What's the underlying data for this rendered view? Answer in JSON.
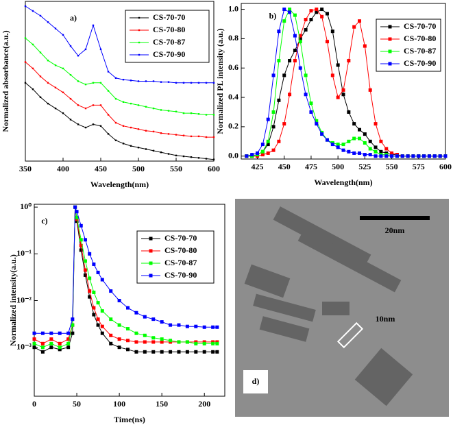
{
  "chart_data": [
    {
      "type": "line",
      "panel_label": "a)",
      "xlabel": "Wavelength(nm)",
      "ylabel": "Normalized absorbance(a.u.)",
      "marker": "dot",
      "x": [
        350,
        360,
        370,
        380,
        390,
        400,
        410,
        420,
        430,
        440,
        450,
        460,
        470,
        480,
        490,
        500,
        510,
        520,
        530,
        540,
        550,
        560,
        570,
        580,
        590,
        600
      ],
      "xlim": [
        350,
        600
      ],
      "xticks": [
        350,
        400,
        450,
        500,
        550,
        600
      ],
      "ylim": [
        0,
        1
      ],
      "series": [
        {
          "name": "CS-70-70",
          "color": "#000000",
          "values": [
            0.49,
            0.45,
            0.4,
            0.36,
            0.33,
            0.3,
            0.26,
            0.23,
            0.21,
            0.23,
            0.22,
            0.17,
            0.13,
            0.11,
            0.095,
            0.085,
            0.075,
            0.065,
            0.055,
            0.045,
            0.035,
            0.03,
            0.025,
            0.02,
            0.015,
            0.01
          ]
        },
        {
          "name": "CS-70-80",
          "color": "#ff0000",
          "values": [
            0.62,
            0.58,
            0.53,
            0.49,
            0.46,
            0.43,
            0.39,
            0.35,
            0.33,
            0.35,
            0.35,
            0.29,
            0.24,
            0.22,
            0.21,
            0.2,
            0.19,
            0.185,
            0.175,
            0.17,
            0.165,
            0.16,
            0.155,
            0.155,
            0.15,
            0.15
          ]
        },
        {
          "name": "CS-70-87",
          "color": "#00ff00",
          "values": [
            0.77,
            0.73,
            0.68,
            0.63,
            0.6,
            0.58,
            0.54,
            0.5,
            0.48,
            0.49,
            0.49,
            0.44,
            0.39,
            0.37,
            0.36,
            0.35,
            0.34,
            0.33,
            0.32,
            0.315,
            0.31,
            0.3,
            0.3,
            0.295,
            0.29,
            0.29
          ]
        },
        {
          "name": "CS-70-90",
          "color": "#0000ff",
          "values": [
            0.97,
            0.94,
            0.91,
            0.87,
            0.83,
            0.79,
            0.72,
            0.66,
            0.7,
            0.85,
            0.7,
            0.56,
            0.52,
            0.51,
            0.505,
            0.5,
            0.5,
            0.5,
            0.495,
            0.495,
            0.49,
            0.49,
            0.49,
            0.49,
            0.49,
            0.49
          ]
        }
      ]
    },
    {
      "type": "line",
      "panel_label": "b)",
      "xlabel": "Wavelength(nm)",
      "ylabel": "Normalized PL intensity (a.u.)",
      "marker": "square",
      "x": [
        415,
        420,
        425,
        430,
        435,
        440,
        445,
        450,
        455,
        460,
        465,
        470,
        475,
        480,
        485,
        490,
        495,
        500,
        505,
        510,
        515,
        520,
        525,
        530,
        535,
        540,
        545,
        550,
        555,
        560,
        565,
        570,
        575,
        580,
        585,
        590,
        595,
        600
      ],
      "xlim": [
        410,
        600
      ],
      "xticks": [
        425,
        450,
        475,
        500,
        525,
        550,
        575,
        600
      ],
      "ylim": [
        -0.02,
        1.04
      ],
      "yticks": [
        {
          "value": 0,
          "label": "0.0"
        },
        0.2,
        0.4,
        0.6,
        0.8,
        {
          "value": 1,
          "label": "1.0"
        }
      ],
      "series": [
        {
          "name": "CS-70-70",
          "color": "#000000",
          "values": [
            0,
            0,
            0.01,
            0.03,
            0.08,
            0.2,
            0.38,
            0.55,
            0.65,
            0.72,
            0.8,
            0.86,
            0.93,
            0.98,
            1.0,
            0.97,
            0.85,
            0.62,
            0.42,
            0.3,
            0.22,
            0.18,
            0.15,
            0.1,
            0.06,
            0.03,
            0.02,
            0.01,
            0.01,
            0,
            0,
            0,
            0,
            0,
            0,
            0,
            0,
            0
          ]
        },
        {
          "name": "CS-70-80",
          "color": "#ff0000",
          "values": [
            0,
            0,
            0,
            0.01,
            0.02,
            0.04,
            0.1,
            0.22,
            0.42,
            0.65,
            0.82,
            0.93,
            0.99,
            1.0,
            0.95,
            0.78,
            0.55,
            0.4,
            0.45,
            0.65,
            0.88,
            0.92,
            0.75,
            0.45,
            0.22,
            0.1,
            0.05,
            0.02,
            0.01,
            0,
            0,
            0,
            0,
            0,
            0,
            0,
            0,
            0
          ]
        },
        {
          "name": "CS-70-87",
          "color": "#00ff00",
          "values": [
            0,
            0,
            0.01,
            0.03,
            0.1,
            0.3,
            0.65,
            0.92,
            1.0,
            0.96,
            0.78,
            0.55,
            0.36,
            0.24,
            0.16,
            0.11,
            0.09,
            0.08,
            0.08,
            0.1,
            0.12,
            0.12,
            0.09,
            0.05,
            0.03,
            0.01,
            0.01,
            0,
            0,
            0,
            0,
            0,
            0,
            0,
            0,
            0,
            0,
            0
          ]
        },
        {
          "name": "CS-70-90",
          "color": "#0000ff",
          "values": [
            0,
            0.01,
            0.02,
            0.08,
            0.25,
            0.55,
            0.85,
            1.0,
            0.98,
            0.82,
            0.6,
            0.42,
            0.3,
            0.22,
            0.15,
            0.11,
            0.08,
            0.06,
            0.04,
            0.03,
            0.02,
            0.02,
            0.01,
            0.01,
            0,
            0,
            0,
            0,
            0,
            0,
            0,
            0,
            0,
            0,
            0,
            0,
            0,
            0
          ]
        }
      ]
    },
    {
      "type": "line",
      "panel_label": "c)",
      "xlabel": "Time(ns)",
      "ylabel": "Normalized intensity(a.u.)",
      "marker": "square",
      "yscale": "log",
      "x": [
        0,
        10,
        20,
        30,
        40,
        45,
        48,
        50,
        55,
        60,
        65,
        70,
        75,
        80,
        90,
        100,
        110,
        120,
        130,
        140,
        150,
        160,
        170,
        180,
        190,
        200,
        210,
        215
      ],
      "xlim": [
        0,
        224
      ],
      "xticks": [
        0,
        50,
        100,
        150,
        200
      ],
      "ylim": [
        9e-05,
        1.15
      ],
      "yticks": [
        {
          "value": 1,
          "label": "10⁰"
        },
        {
          "value": 0.1,
          "label": "10⁻¹"
        },
        {
          "value": 0.01,
          "label": "10⁻²"
        },
        {
          "value": 0.001,
          "label": "10⁻³"
        }
      ],
      "series": [
        {
          "name": "CS-70-70",
          "color": "#000000",
          "values": [
            0.001,
            0.0008,
            0.001,
            0.0009,
            0.001,
            0.002,
            1,
            0.5,
            0.12,
            0.035,
            0.012,
            0.005,
            0.003,
            0.002,
            0.0012,
            0.001,
            0.0009,
            0.0008,
            0.0008,
            0.0008,
            0.0008,
            0.0008,
            0.0008,
            0.0008,
            0.0008,
            0.0008,
            0.0008,
            0.0008
          ]
        },
        {
          "name": "CS-70-80",
          "color": "#ff0000",
          "values": [
            0.0015,
            0.0012,
            0.0015,
            0.0012,
            0.0015,
            0.003,
            1,
            0.55,
            0.15,
            0.045,
            0.016,
            0.007,
            0.004,
            0.0028,
            0.0018,
            0.0015,
            0.0014,
            0.0013,
            0.0013,
            0.0013,
            0.0013,
            0.0013,
            0.0013,
            0.0013,
            0.0013,
            0.0013,
            0.0013,
            0.0013
          ]
        },
        {
          "name": "CS-70-87",
          "color": "#00ff00",
          "values": [
            0.0012,
            0.001,
            0.0012,
            0.001,
            0.0012,
            0.003,
            1,
            0.6,
            0.2,
            0.07,
            0.03,
            0.015,
            0.009,
            0.006,
            0.004,
            0.003,
            0.0025,
            0.002,
            0.0018,
            0.0016,
            0.0015,
            0.0014,
            0.0013,
            0.0013,
            0.0012,
            0.0012,
            0.0012,
            0.0012
          ]
        },
        {
          "name": "CS-70-90",
          "color": "#0000ff",
          "values": [
            0.002,
            0.002,
            0.002,
            0.002,
            0.002,
            0.004,
            1,
            0.8,
            0.4,
            0.2,
            0.1,
            0.06,
            0.04,
            0.028,
            0.016,
            0.01,
            0.007,
            0.0055,
            0.0045,
            0.004,
            0.0035,
            0.003,
            0.003,
            0.0028,
            0.0028,
            0.0027,
            0.0027,
            0.0027
          ]
        }
      ]
    }
  ],
  "micrograph": {
    "panel_label": "d)",
    "scale_bar": "20nm",
    "annotation": "10nm"
  }
}
